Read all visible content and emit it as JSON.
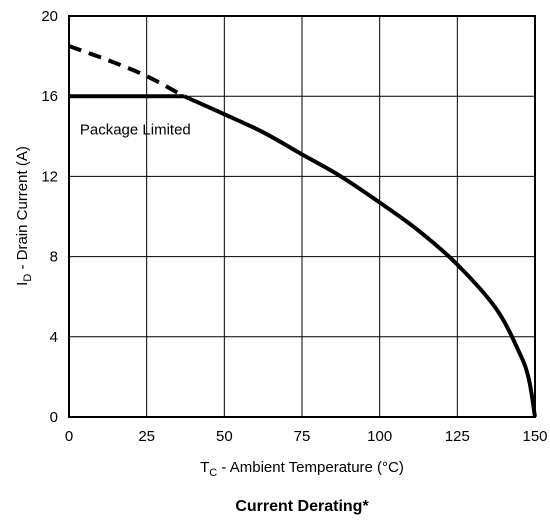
{
  "chart_data": {
    "type": "line",
    "title": "Current Derating*",
    "xlabel": {
      "main": "T",
      "sub": "C",
      "rest": " - Ambient Temperature (°C)"
    },
    "ylabel": {
      "main": "I",
      "sub": "D",
      "rest": " - Drain Current (A)"
    },
    "xlim": [
      0,
      150
    ],
    "ylim": [
      0,
      20
    ],
    "x_ticks": [
      0,
      25,
      50,
      75,
      100,
      125,
      150
    ],
    "y_ticks": [
      0,
      4,
      8,
      12,
      16,
      20
    ],
    "grid": true,
    "annotations": [
      {
        "text": "Package Limited",
        "x": 3.5,
        "y": 14.1
      }
    ],
    "series": [
      {
        "style": "dashed",
        "x": [
          0,
          12.5,
          25,
          37
        ],
        "y": [
          18.5,
          17.8,
          17.0,
          16.0
        ]
      },
      {
        "style": "solid",
        "x": [
          0,
          37
        ],
        "y": [
          16.0,
          16.0
        ]
      },
      {
        "style": "solid",
        "x": [
          37,
          50,
          62.5,
          75,
          87.5,
          100,
          112.5,
          125,
          137.5,
          145,
          148,
          150
        ],
        "y": [
          16.0,
          15.1,
          14.2,
          13.1,
          12.0,
          10.7,
          9.3,
          7.6,
          5.4,
          3.2,
          1.9,
          0
        ]
      }
    ]
  }
}
